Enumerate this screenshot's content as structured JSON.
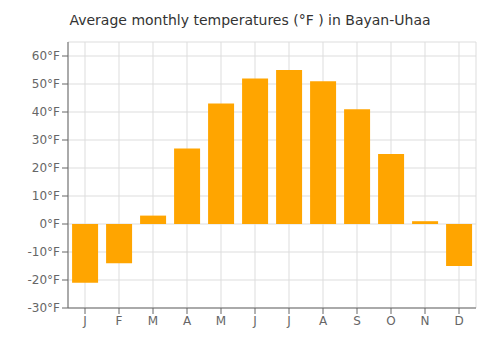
{
  "chart_data": {
    "type": "bar",
    "title": "Average monthly temperatures (°F ) in Bayan-Uhaa",
    "categories": [
      "J",
      "F",
      "M",
      "A",
      "M",
      "J",
      "J",
      "A",
      "S",
      "O",
      "N",
      "D"
    ],
    "values": [
      -21,
      -14,
      3,
      27,
      43,
      52,
      55,
      51,
      41,
      25,
      1,
      -15
    ],
    "color": "#FFA500",
    "ylim": [
      -30,
      65
    ],
    "yticks": [
      {
        "value": -30,
        "label": "-30°F"
      },
      {
        "value": -20,
        "label": "-20°F"
      },
      {
        "value": -10,
        "label": "-10°F"
      },
      {
        "value": 0,
        "label": "0°F"
      },
      {
        "value": 10,
        "label": "10°F"
      },
      {
        "value": 20,
        "label": "20°F"
      },
      {
        "value": 30,
        "label": "30°F"
      },
      {
        "value": 40,
        "label": "40°F"
      },
      {
        "value": 50,
        "label": "50°F"
      },
      {
        "value": 60,
        "label": "60°F"
      }
    ],
    "grid": true
  }
}
